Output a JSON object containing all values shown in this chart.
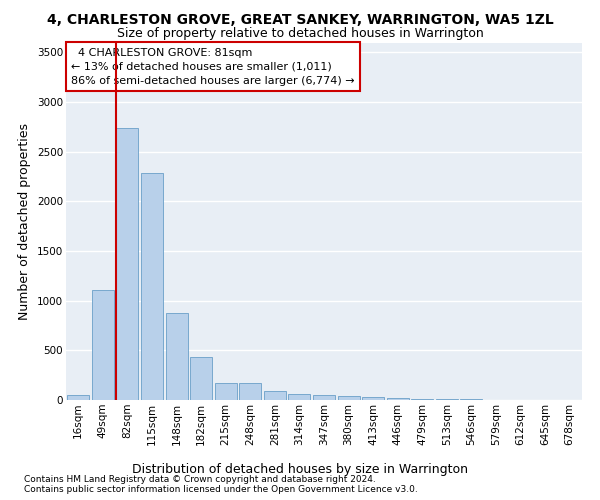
{
  "title": "4, CHARLESTON GROVE, GREAT SANKEY, WARRINGTON, WA5 1ZL",
  "subtitle": "Size of property relative to detached houses in Warrington",
  "xlabel": "Distribution of detached houses by size in Warrington",
  "ylabel": "Number of detached properties",
  "footnote1": "Contains HM Land Registry data © Crown copyright and database right 2024.",
  "footnote2": "Contains public sector information licensed under the Open Government Licence v3.0.",
  "categories": [
    "16sqm",
    "49sqm",
    "82sqm",
    "115sqm",
    "148sqm",
    "182sqm",
    "215sqm",
    "248sqm",
    "281sqm",
    "314sqm",
    "347sqm",
    "380sqm",
    "413sqm",
    "446sqm",
    "479sqm",
    "513sqm",
    "546sqm",
    "579sqm",
    "612sqm",
    "645sqm",
    "678sqm"
  ],
  "values": [
    55,
    1110,
    2740,
    2290,
    880,
    430,
    175,
    170,
    90,
    65,
    50,
    45,
    35,
    25,
    15,
    12,
    8,
    5,
    3,
    2,
    1
  ],
  "bar_color": "#b8d0ea",
  "bar_edge_color": "#6a9fc8",
  "reference_line_color": "#cc0000",
  "annotation_text": "  4 CHARLESTON GROVE: 81sqm  \n← 13% of detached houses are smaller (1,011)\n86% of semi-detached houses are larger (6,774) →",
  "annotation_box_color": "#cc0000",
  "ylim": [
    0,
    3600
  ],
  "yticks": [
    0,
    500,
    1000,
    1500,
    2000,
    2500,
    3000,
    3500
  ],
  "background_color": "#e8eef5",
  "grid_color": "#ffffff",
  "title_fontsize": 10,
  "subtitle_fontsize": 9,
  "ylabel_fontsize": 9,
  "xlabel_fontsize": 9,
  "tick_fontsize": 7.5,
  "footnote_fontsize": 6.5,
  "annotation_fontsize": 8
}
